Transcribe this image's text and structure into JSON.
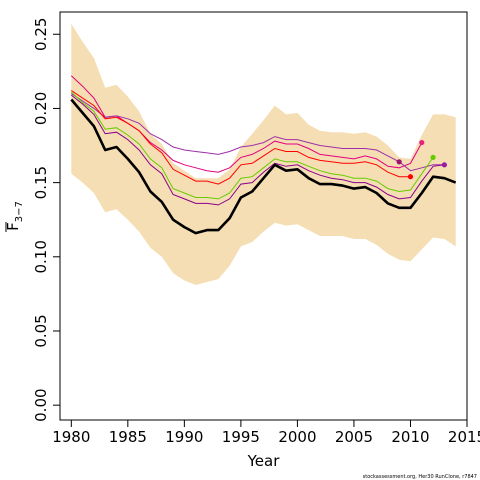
{
  "chart_data": {
    "type": "line",
    "xlabel": "Year",
    "ylabel_main": "F",
    "ylabel_sub": "3−7",
    "xlim": [
      1979,
      2015
    ],
    "ylim": [
      -0.01,
      0.265
    ],
    "xticks": [
      1980,
      1985,
      1990,
      1995,
      2000,
      2005,
      2010,
      2015
    ],
    "yticks": [
      "0.00",
      "0.05",
      "0.10",
      "0.15",
      "0.20",
      "0.25"
    ],
    "yticks_values": [
      0.0,
      0.05,
      0.1,
      0.15,
      0.2,
      0.25
    ],
    "footnote": "stockassessment.org,  Her30  RunClone,  r7847",
    "band_color": "#F5DEB3",
    "band": {
      "x": [
        1980,
        1981,
        1982,
        1983,
        1984,
        1985,
        1986,
        1987,
        1988,
        1989,
        1990,
        1991,
        1992,
        1993,
        1994,
        1995,
        1996,
        1997,
        1998,
        1999,
        2000,
        2001,
        2002,
        2003,
        2004,
        2005,
        2006,
        2007,
        2008,
        2009,
        2010,
        2011,
        2012,
        2013,
        2014
      ],
      "upper": [
        0.257,
        0.245,
        0.234,
        0.214,
        0.216,
        0.208,
        0.198,
        0.183,
        0.176,
        0.163,
        0.158,
        0.153,
        0.153,
        0.153,
        0.159,
        0.174,
        0.183,
        0.192,
        0.202,
        0.196,
        0.197,
        0.189,
        0.185,
        0.184,
        0.184,
        0.183,
        0.184,
        0.181,
        0.175,
        0.167,
        0.166,
        0.182,
        0.196,
        0.196,
        0.194
      ],
      "lower": [
        0.156,
        0.15,
        0.143,
        0.13,
        0.132,
        0.125,
        0.117,
        0.106,
        0.1,
        0.089,
        0.084,
        0.081,
        0.083,
        0.085,
        0.094,
        0.107,
        0.11,
        0.117,
        0.123,
        0.121,
        0.122,
        0.118,
        0.114,
        0.114,
        0.114,
        0.112,
        0.112,
        0.108,
        0.102,
        0.098,
        0.097,
        0.105,
        0.113,
        0.112,
        0.107
      ]
    },
    "main_series": {
      "color": "#000000",
      "x": [
        1980,
        1981,
        1982,
        1983,
        1984,
        1985,
        1986,
        1987,
        1988,
        1989,
        1990,
        1991,
        1992,
        1993,
        1994,
        1995,
        1996,
        1997,
        1998,
        1999,
        2000,
        2001,
        2002,
        2003,
        2004,
        2005,
        2006,
        2007,
        2008,
        2009,
        2010,
        2011,
        2012,
        2013,
        2014
      ],
      "values": [
        0.206,
        0.197,
        0.188,
        0.172,
        0.174,
        0.166,
        0.157,
        0.144,
        0.137,
        0.125,
        0.12,
        0.116,
        0.118,
        0.118,
        0.126,
        0.14,
        0.144,
        0.153,
        0.162,
        0.158,
        0.159,
        0.153,
        0.149,
        0.149,
        0.148,
        0.146,
        0.147,
        0.143,
        0.136,
        0.133,
        0.133,
        0.143,
        0.154,
        0.153,
        0.15
      ]
    },
    "series": [
      {
        "color": "#e4007f",
        "x": [
          1980,
          1981,
          1982,
          1983,
          1984,
          1985,
          1986,
          1987,
          1988,
          1989,
          1990,
          1991,
          1992,
          1993,
          1994,
          1995,
          1996,
          1997,
          1998,
          1999,
          2000,
          2001,
          2002,
          2003,
          2004,
          2005,
          2006,
          2007,
          2008,
          2009,
          2010,
          2011
        ],
        "values": [
          0.222,
          0.215,
          0.207,
          0.194,
          0.195,
          0.19,
          0.185,
          0.177,
          0.172,
          0.165,
          0.162,
          0.16,
          0.158,
          0.157,
          0.16,
          0.167,
          0.169,
          0.173,
          0.178,
          0.176,
          0.176,
          0.173,
          0.169,
          0.168,
          0.167,
          0.166,
          0.168,
          0.166,
          0.161,
          0.16,
          0.163,
          0.177
        ]
      },
      {
        "color": "#9f2fa8",
        "x": [
          1980,
          1981,
          1982,
          1983,
          1984,
          1985,
          1986,
          1987,
          1988,
          1989,
          1990,
          1991,
          1992,
          1993,
          1994,
          1995,
          1996,
          1997,
          1998,
          1999,
          2000,
          2001,
          2002,
          2003,
          2004,
          2005,
          2006,
          2007,
          2008,
          2009,
          2010,
          2011,
          2012,
          2013
        ],
        "values": [
          0.21,
          0.205,
          0.2,
          0.194,
          0.195,
          0.193,
          0.19,
          0.183,
          0.179,
          0.174,
          0.172,
          0.171,
          0.17,
          0.169,
          0.171,
          0.174,
          0.175,
          0.177,
          0.181,
          0.179,
          0.179,
          0.177,
          0.175,
          0.174,
          0.173,
          0.173,
          0.173,
          0.172,
          0.168,
          0.164,
          0.158,
          0.16,
          0.162,
          0.162
        ]
      },
      {
        "color": "#ff0000",
        "x": [
          1980,
          1981,
          1982,
          1983,
          1984,
          1985,
          1986,
          1987,
          1988,
          1989,
          1990,
          1991,
          1992,
          1993,
          1994,
          1995,
          1996,
          1997,
          1998,
          1999,
          2000,
          2001,
          2002,
          2003,
          2004,
          2005,
          2006,
          2007,
          2008,
          2009,
          2010
        ],
        "values": [
          0.212,
          0.207,
          0.202,
          0.193,
          0.194,
          0.19,
          0.185,
          0.176,
          0.17,
          0.159,
          0.155,
          0.151,
          0.151,
          0.149,
          0.153,
          0.162,
          0.163,
          0.168,
          0.173,
          0.171,
          0.171,
          0.167,
          0.165,
          0.164,
          0.163,
          0.163,
          0.164,
          0.162,
          0.157,
          0.154,
          0.154
        ]
      },
      {
        "color": "#66cc00",
        "x": [
          1980,
          1981,
          1982,
          1983,
          1984,
          1985,
          1986,
          1987,
          1988,
          1989,
          1990,
          1991,
          1992,
          1993,
          1994,
          1995,
          1996,
          1997,
          1998,
          1999,
          2000,
          2001,
          2002,
          2003,
          2004,
          2005,
          2006,
          2007,
          2008,
          2009,
          2010,
          2011,
          2012
        ],
        "values": [
          0.211,
          0.204,
          0.198,
          0.186,
          0.187,
          0.182,
          0.176,
          0.166,
          0.16,
          0.146,
          0.143,
          0.14,
          0.14,
          0.139,
          0.143,
          0.153,
          0.154,
          0.16,
          0.166,
          0.164,
          0.164,
          0.161,
          0.158,
          0.156,
          0.155,
          0.153,
          0.153,
          0.151,
          0.146,
          0.144,
          0.145,
          0.156,
          0.167
        ]
      },
      {
        "color": "#8b008b",
        "x": [
          1980,
          1981,
          1982,
          1983,
          1984,
          1985,
          1986,
          1987,
          1988,
          1989,
          1990,
          1991,
          1992,
          1993,
          1994,
          1995,
          1996,
          1997,
          1998,
          1999,
          2000,
          2001,
          2002,
          2003,
          2004,
          2005,
          2006,
          2007,
          2008,
          2009,
          2010,
          2011,
          2012,
          2013
        ],
        "values": [
          0.209,
          0.203,
          0.196,
          0.183,
          0.184,
          0.179,
          0.172,
          0.162,
          0.156,
          0.142,
          0.139,
          0.136,
          0.136,
          0.135,
          0.139,
          0.149,
          0.15,
          0.157,
          0.163,
          0.161,
          0.162,
          0.158,
          0.155,
          0.153,
          0.152,
          0.15,
          0.15,
          0.147,
          0.142,
          0.139,
          0.14,
          0.151,
          0.161,
          0.162
        ]
      }
    ],
    "endpoints": [
      {
        "color": "#a0116e",
        "x": 2009,
        "y": 0.164
      },
      {
        "color": "#ff0000",
        "x": 2010,
        "y": 0.154
      },
      {
        "color": "#e8207f",
        "x": 2011,
        "y": 0.177
      },
      {
        "color": "#66cc00",
        "x": 2012,
        "y": 0.167
      },
      {
        "color": "#9a1aa8",
        "x": 2013,
        "y": 0.162
      }
    ]
  }
}
